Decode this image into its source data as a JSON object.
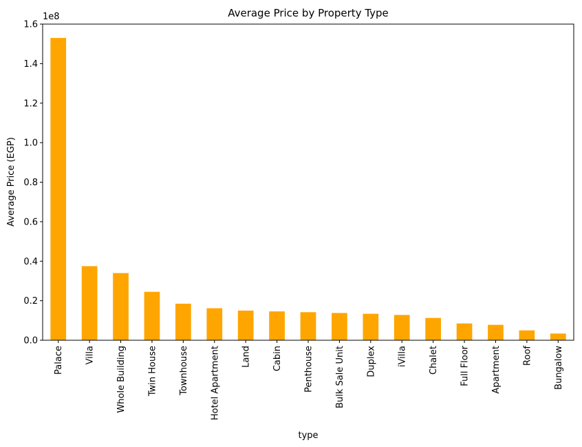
{
  "chart_data": {
    "type": "bar",
    "title": "Average Price by Property Type",
    "xlabel": "type",
    "ylabel": "Average Price (EGP)",
    "y_offset_label": "1e8",
    "bar_color": "#FFA500",
    "ylim": [
      0,
      160000000
    ],
    "y_ticks": [
      0,
      20000000,
      40000000,
      60000000,
      80000000,
      100000000,
      120000000,
      140000000,
      160000000
    ],
    "y_tick_labels": [
      "0.0",
      "0.2",
      "0.4",
      "0.6",
      "0.8",
      "1.0",
      "1.2",
      "1.4",
      "1.6"
    ],
    "categories": [
      "Palace",
      "Villa",
      "Whole Building",
      "Twin House",
      "Townhouse",
      "Hotel Apartment",
      "Land",
      "Cabin",
      "Penthouse",
      "Bulk Sale Unit",
      "Duplex",
      "iVilla",
      "Chalet",
      "Full Floor",
      "Apartment",
      "Roof",
      "Bungalow"
    ],
    "values": [
      153000000,
      37500000,
      34000000,
      24500000,
      18500000,
      16200000,
      15000000,
      14600000,
      14200000,
      13800000,
      13400000,
      12800000,
      11300000,
      8500000,
      7800000,
      5000000,
      3400000
    ]
  }
}
